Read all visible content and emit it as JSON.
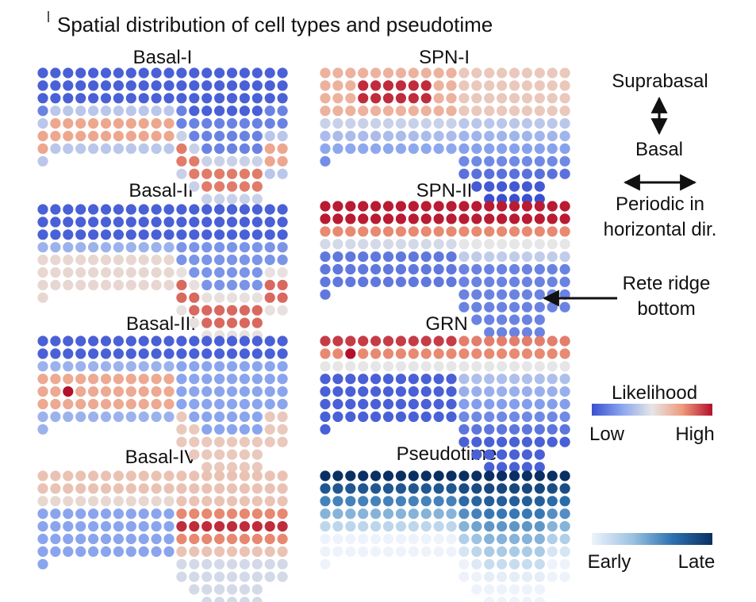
{
  "figure": {
    "title": "Spatial distribution of cell types and pseudotime",
    "panels": [
      {
        "id": "basal-1",
        "label": "Basal-I",
        "scale": "likelihood",
        "pattern": "basal1"
      },
      {
        "id": "spn-1",
        "label": "SPN-I",
        "scale": "likelihood",
        "pattern": "spn1"
      },
      {
        "id": "basal-2",
        "label": "Basal-II",
        "scale": "likelihood",
        "pattern": "basal2"
      },
      {
        "id": "spn-2",
        "label": "SPN-II",
        "scale": "likelihood",
        "pattern": "spn2"
      },
      {
        "id": "basal-3",
        "label": "Basal-III",
        "scale": "likelihood",
        "pattern": "basal3"
      },
      {
        "id": "grn",
        "label": "GRN",
        "scale": "likelihood",
        "pattern": "grn"
      },
      {
        "id": "basal-4",
        "label": "Basal-IV",
        "scale": "likelihood",
        "pattern": "basal4"
      },
      {
        "id": "pseudotime",
        "label": "Pseudotime",
        "scale": "pseudotime",
        "pattern": "pseudo"
      }
    ],
    "annotations": {
      "suprabasal": "Suprabasal",
      "basal": "Basal",
      "periodic_line1": "Periodic in",
      "periodic_line2": "horizontal dir.",
      "rete_line1": "Rete ridge",
      "rete_line2": "bottom"
    },
    "likelihood_legend": {
      "title": "Likelihood",
      "low": "Low",
      "high": "High",
      "colors": [
        "#3a4fd0",
        "#8aa5ee",
        "#e6e6e6",
        "#ef9a7c",
        "#b3102c"
      ]
    },
    "pseudotime_legend": {
      "early": "Early",
      "late": "Late",
      "colors": [
        "#eef3fb",
        "#9cc3e2",
        "#2f72b0",
        "#0a2f62"
      ]
    }
  }
}
